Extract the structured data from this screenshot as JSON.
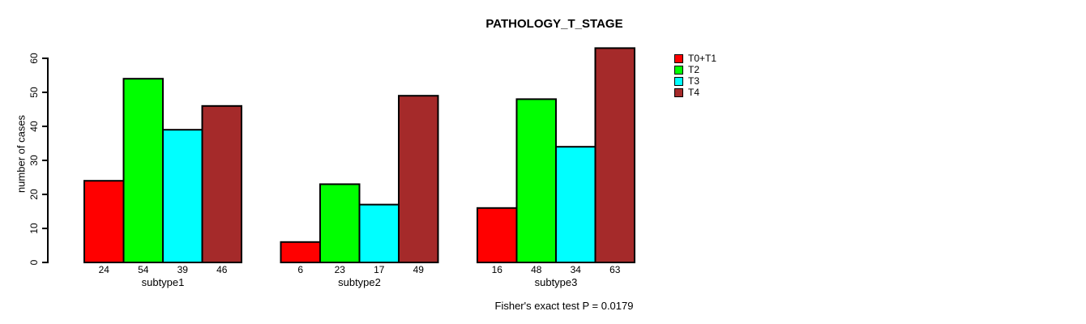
{
  "title": "PATHOLOGY_T_STAGE",
  "annotation": "Fisher's exact test P = 0.0179",
  "chart_data": {
    "type": "bar",
    "grouped": true,
    "title": "PATHOLOGY_T_STAGE",
    "xlabel": "",
    "ylabel": "number of cases",
    "categories": [
      "subtype1",
      "subtype2",
      "subtype3"
    ],
    "series": [
      {
        "name": "T0+T1",
        "color": "#ff0000",
        "values": [
          24,
          6,
          16
        ]
      },
      {
        "name": "T2",
        "color": "#00ff00",
        "values": [
          54,
          23,
          48
        ]
      },
      {
        "name": "T3",
        "color": "#00ffff",
        "values": [
          39,
          17,
          34
        ]
      },
      {
        "name": "T4",
        "color": "#a52a2a",
        "values": [
          46,
          49,
          63
        ]
      }
    ],
    "bar_value_labels_shown": true,
    "yticks": [
      0,
      10,
      20,
      30,
      40,
      50,
      60
    ],
    "ylim": [
      0,
      63
    ],
    "grid": false,
    "legend_position": "top-right-outside",
    "axis_color": "#000000",
    "text_color": "#000000",
    "background": "#ffffff",
    "annotation": "Fisher's exact test P = 0.0179"
  }
}
